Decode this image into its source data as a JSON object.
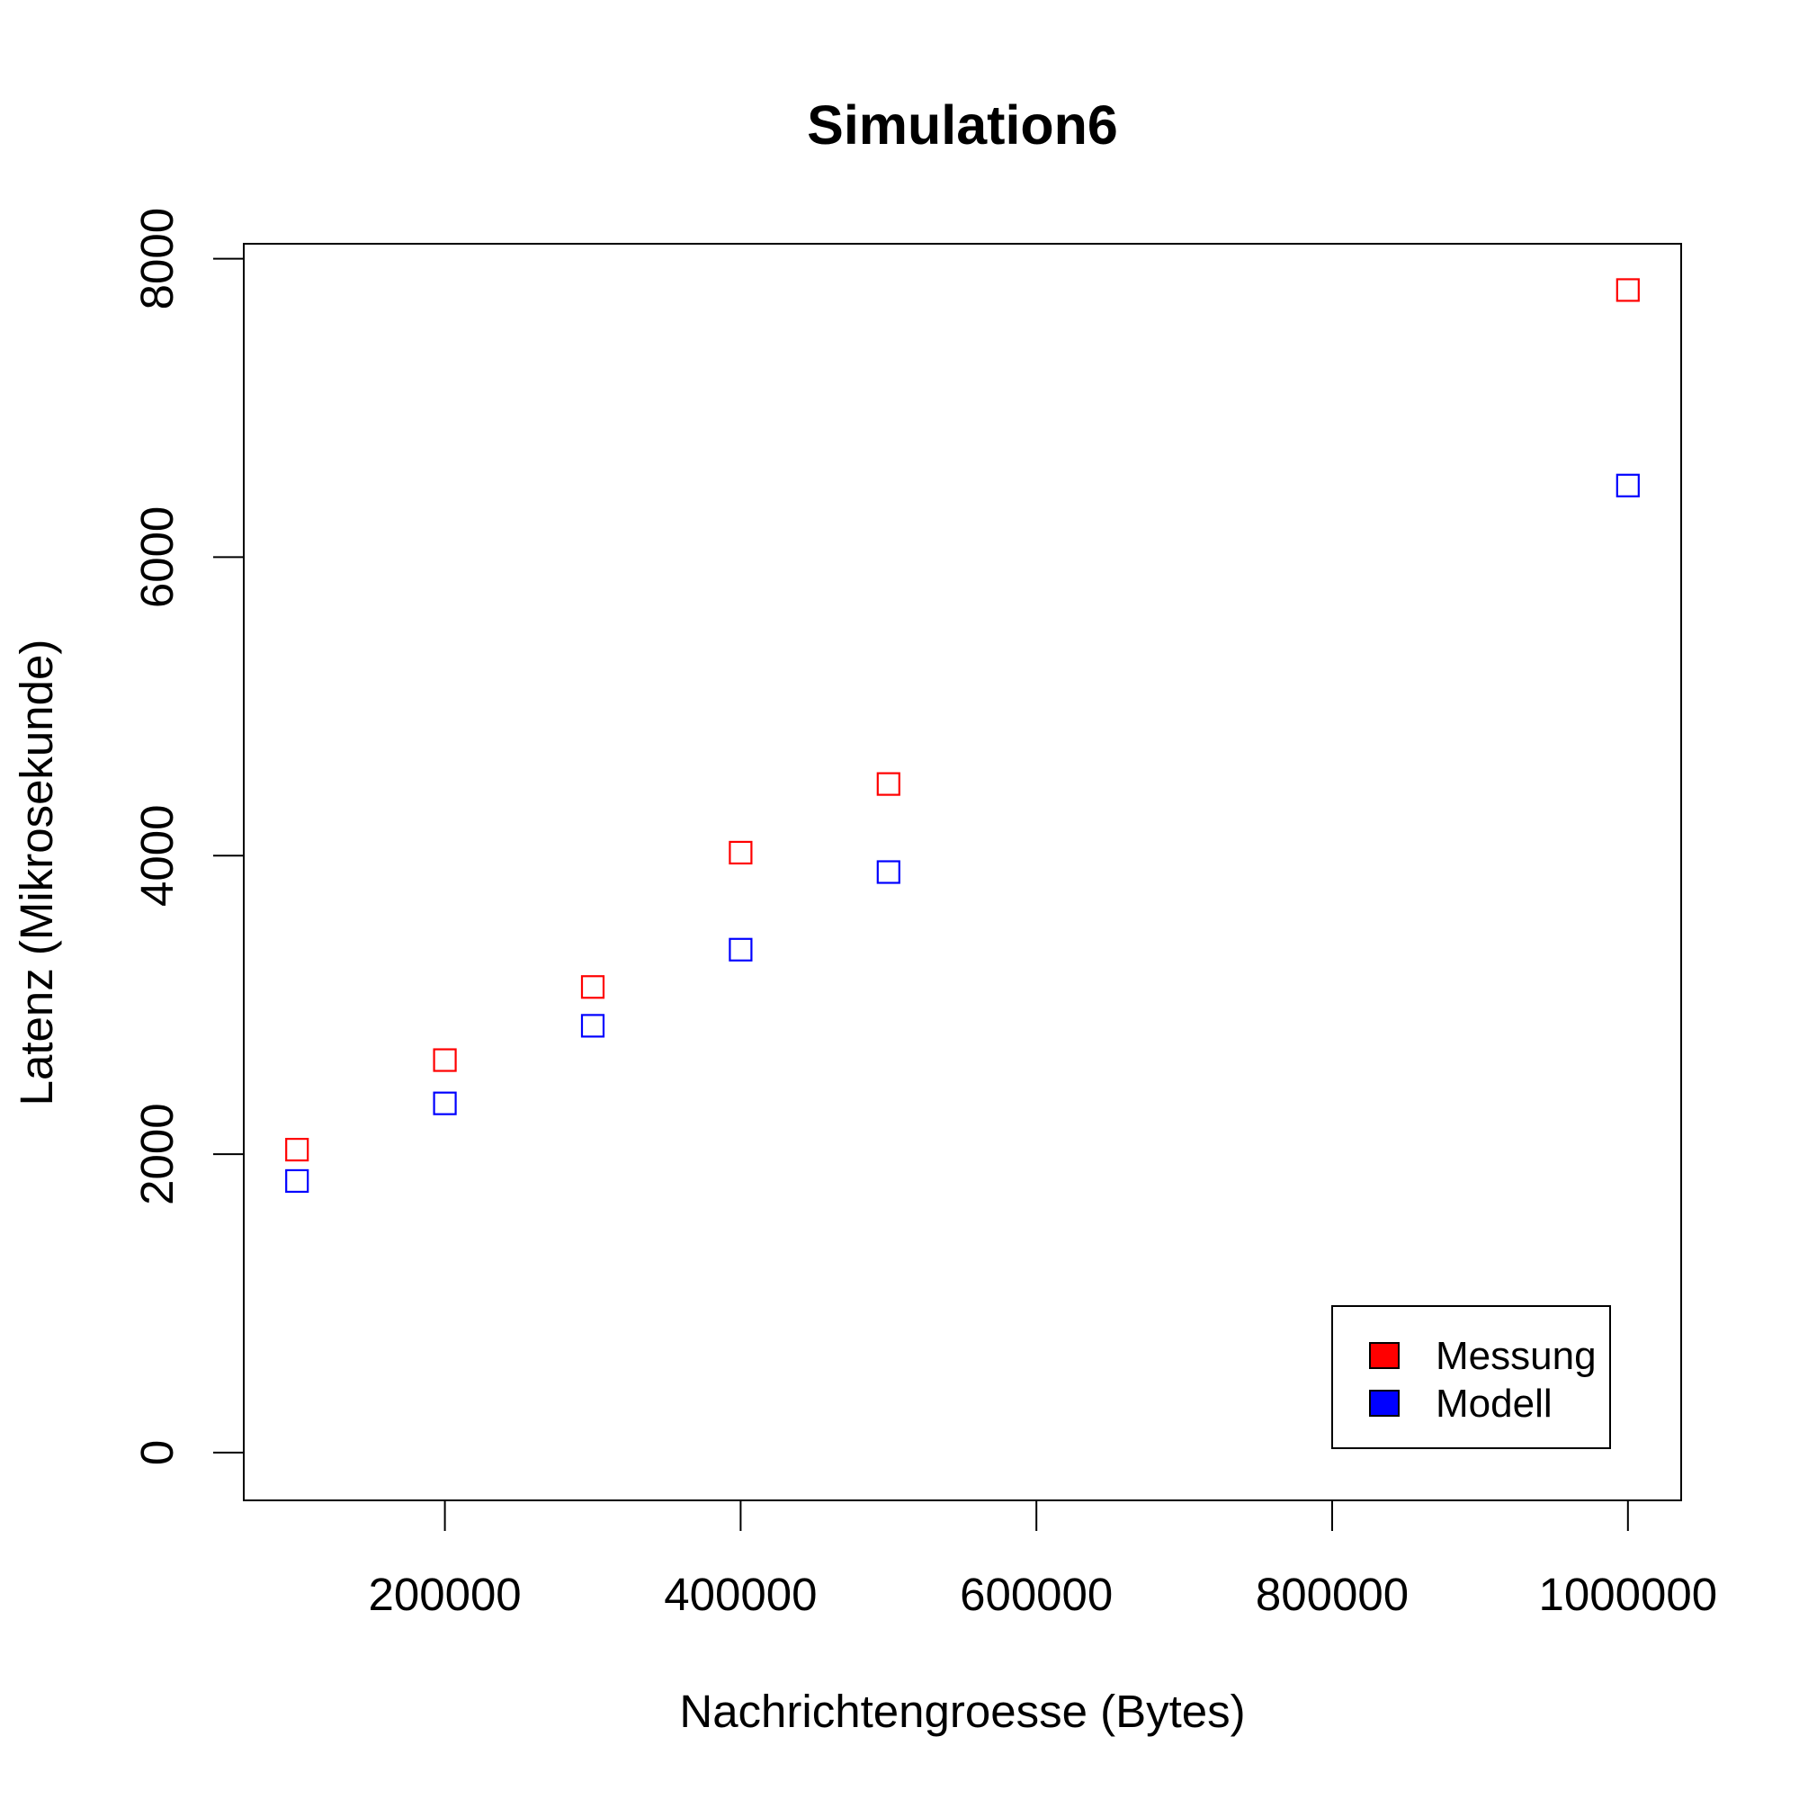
{
  "chart_data": {
    "type": "scatter",
    "title": "Simulation6",
    "xlabel": "Nachrichtengroesse (Bytes)",
    "ylabel": "Latenz (Mikrosekunde)",
    "x": [
      100000,
      200000,
      300000,
      400000,
      500000,
      1000000
    ],
    "series": [
      {
        "name": "Messung",
        "color": "#ff0000",
        "marker": "open-square",
        "values": [
          2030,
          2630,
          3120,
          4020,
          4480,
          7790
        ]
      },
      {
        "name": "Modell",
        "color": "#0000ff",
        "marker": "open-square",
        "values": [
          1820,
          2340,
          2860,
          3370,
          3890,
          6480
        ]
      }
    ],
    "xlim": [
      64000,
      1036000
    ],
    "ylim": [
      -320,
      8100
    ],
    "xticks": [
      200000,
      400000,
      600000,
      800000,
      1000000
    ],
    "xtick_labels": [
      "200000",
      "400000",
      "600000",
      "800000",
      "1000000"
    ],
    "yticks": [
      0,
      2000,
      4000,
      6000,
      8000
    ],
    "ytick_labels": [
      "0",
      "2000",
      "4000",
      "6000",
      "8000"
    ],
    "grid": false,
    "legend_position": "bottom-right"
  }
}
